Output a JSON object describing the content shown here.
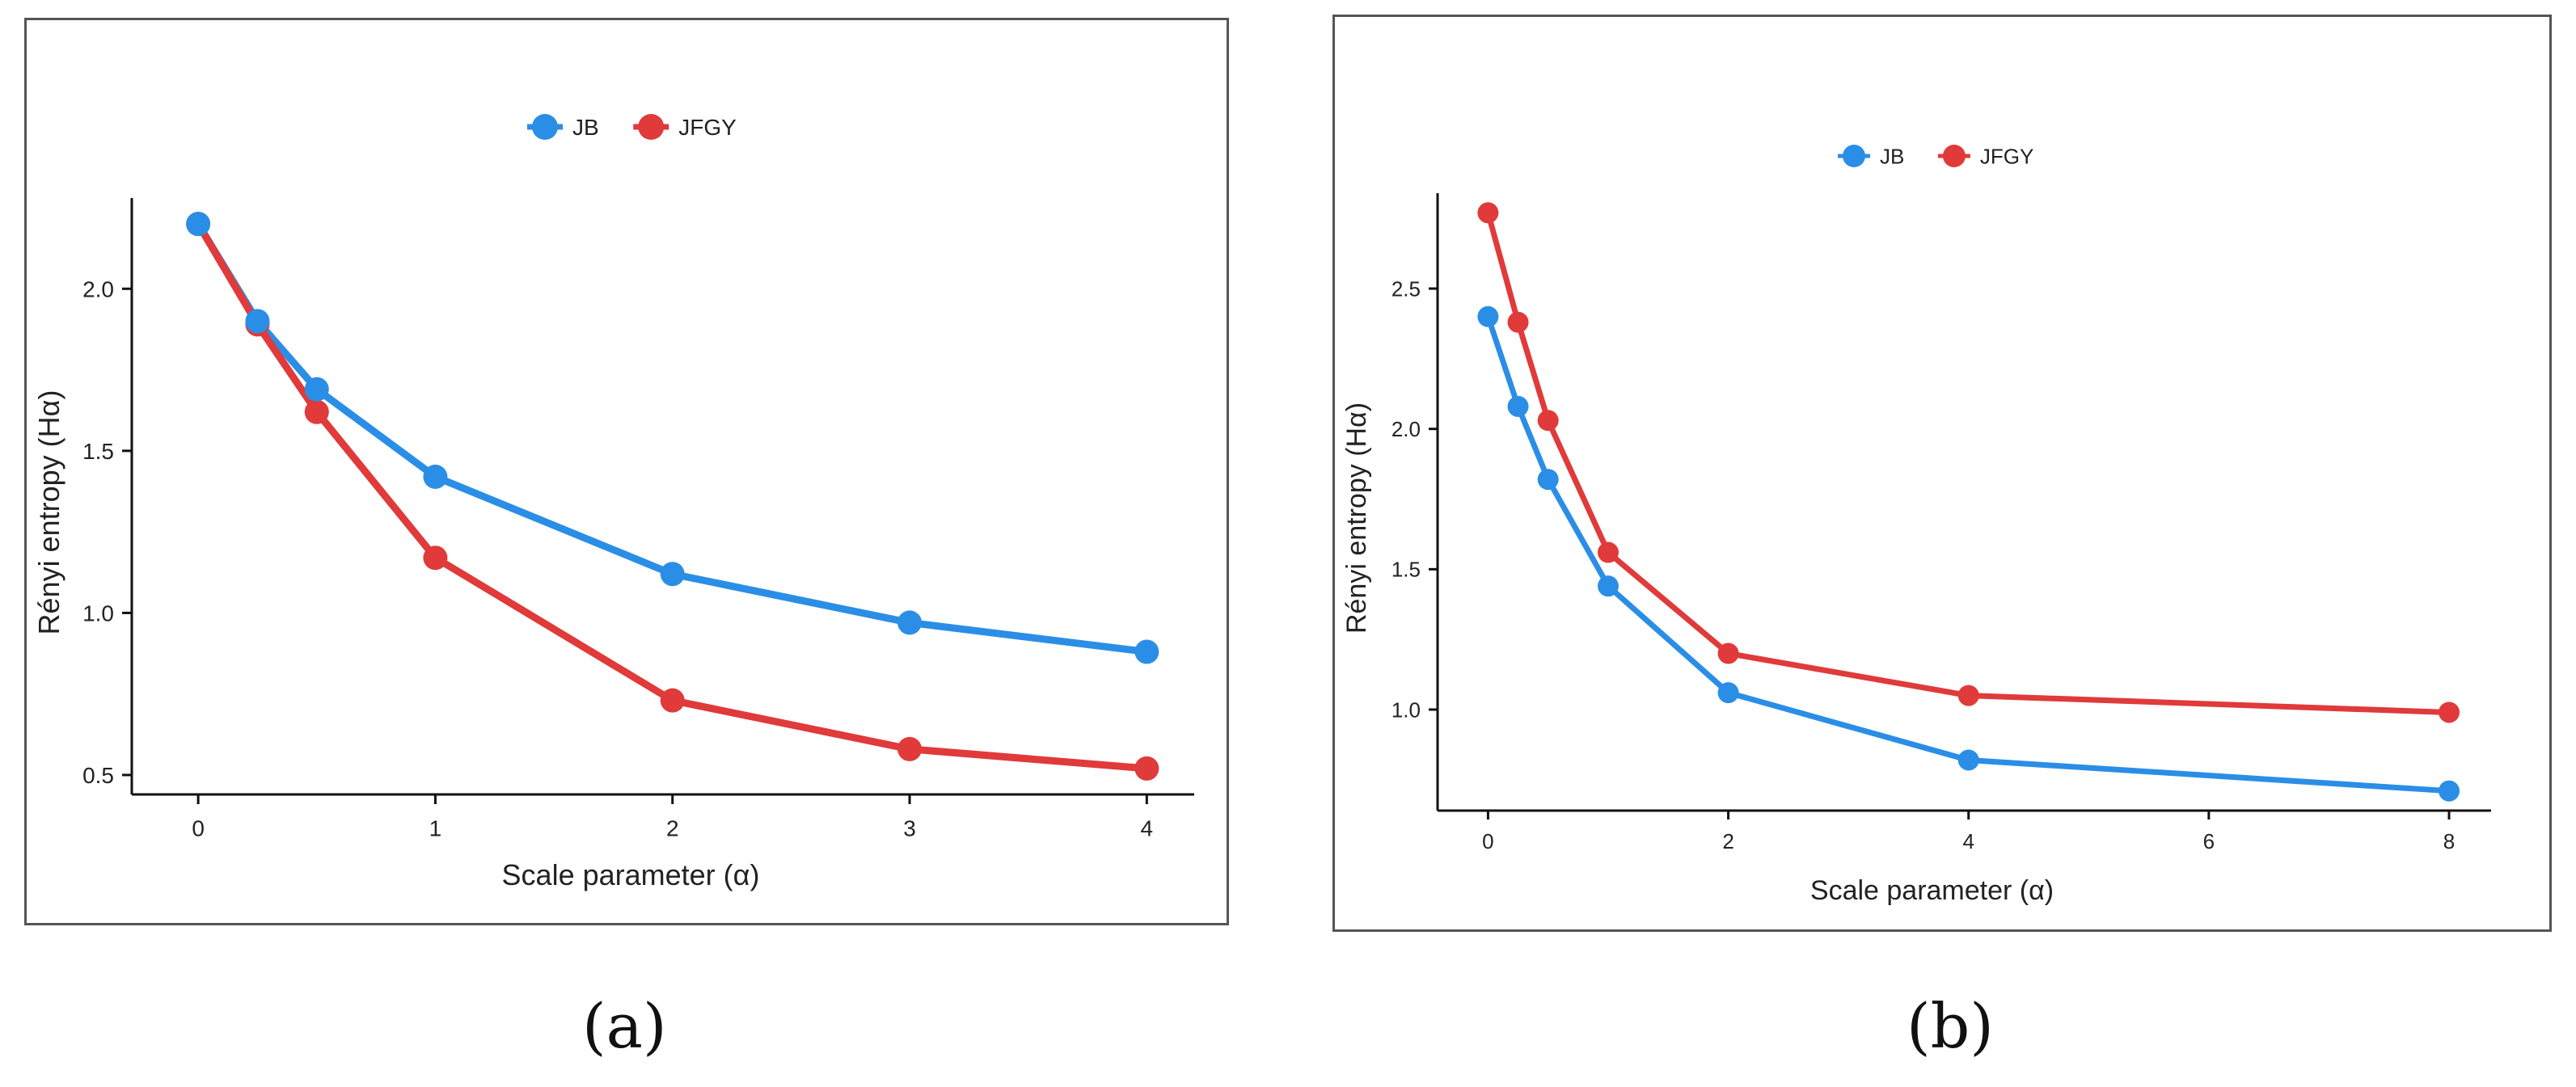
{
  "chart_data": [
    {
      "type": "line",
      "panel_label": "(a)",
      "xlabel": "Scale parameter (α)",
      "ylabel": "Rényi entropy (Hα)",
      "xlim": [
        -0.28,
        4.2
      ],
      "ylim": [
        0.44,
        2.28
      ],
      "xticks": [
        0,
        1,
        2,
        3,
        4
      ],
      "xtick_labels": [
        "0",
        "1",
        "2",
        "3",
        "4"
      ],
      "yticks": [
        0.5,
        1.0,
        1.5,
        2.0
      ],
      "ytick_labels": [
        "0.5",
        "1.0",
        "1.5",
        "2.0"
      ],
      "legend_position": "top",
      "series": [
        {
          "name": "JB",
          "color": "#2b8ee6",
          "x": [
            0,
            0.25,
            0.5,
            1,
            2,
            3,
            4
          ],
          "y": [
            2.2,
            1.9,
            1.69,
            1.42,
            1.12,
            0.97,
            0.88
          ]
        },
        {
          "name": "JFGY",
          "color": "#e03a3a",
          "x": [
            0,
            0.25,
            0.5,
            1,
            2,
            3,
            4
          ],
          "y": [
            2.2,
            1.89,
            1.62,
            1.17,
            0.73,
            0.58,
            0.52
          ]
        }
      ]
    },
    {
      "type": "line",
      "panel_label": "(b)",
      "xlabel": "Scale parameter (α)",
      "ylabel": "Rényi entropy (Hα)",
      "xlim": [
        -0.42,
        8.35
      ],
      "ylim": [
        0.64,
        2.84
      ],
      "xticks": [
        0,
        2,
        4,
        6,
        8
      ],
      "xtick_labels": [
        "0",
        "2",
        "4",
        "6",
        "8"
      ],
      "yticks": [
        1.0,
        1.5,
        2.0,
        2.5
      ],
      "ytick_labels": [
        "1.0",
        "1.5",
        "2.0",
        "2.5"
      ],
      "legend_position": "top",
      "series": [
        {
          "name": "JB",
          "color": "#2b8ee6",
          "x": [
            0,
            0.25,
            0.5,
            1,
            2,
            4,
            8
          ],
          "y": [
            2.4,
            2.08,
            1.82,
            1.44,
            1.06,
            0.82,
            0.71
          ]
        },
        {
          "name": "JFGY",
          "color": "#e03a3a",
          "x": [
            0,
            0.25,
            0.5,
            1,
            2,
            4,
            8
          ],
          "y": [
            2.77,
            2.38,
            2.03,
            1.56,
            1.2,
            1.05,
            0.99
          ]
        }
      ]
    }
  ]
}
